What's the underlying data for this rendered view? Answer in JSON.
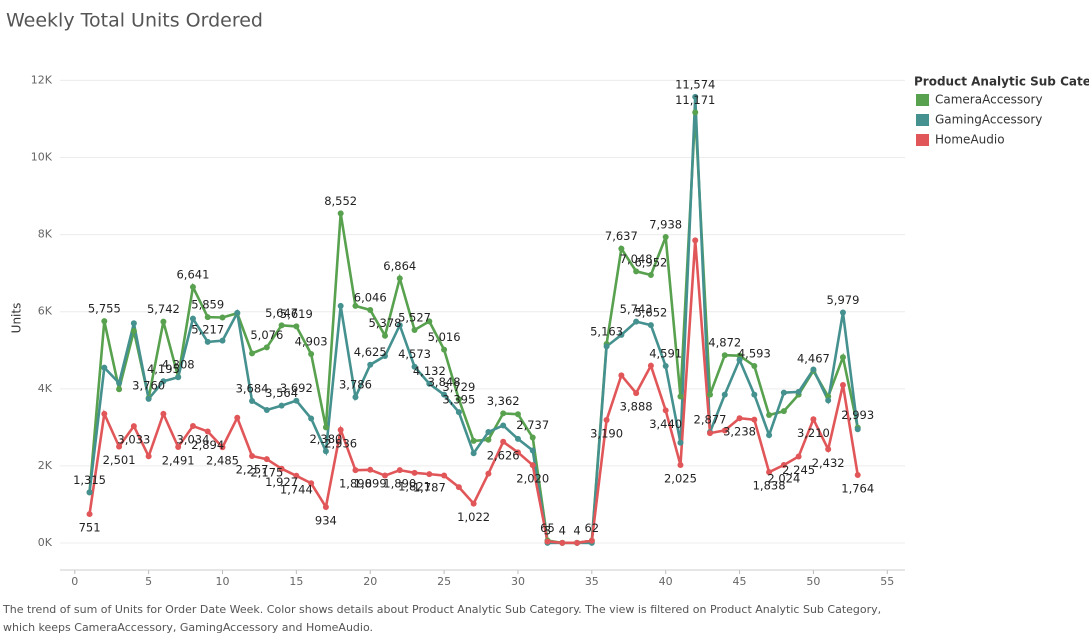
{
  "chart_data": {
    "type": "line",
    "title": "Weekly Total Units Ordered",
    "y_label": "Units",
    "legend_title": "Product Analytic Sub Category",
    "legend_position": "right",
    "grid": true,
    "caption": [
      "The trend of sum of Units for Order Date Week.  Color shows details about Product Analytic Sub Category. The view is filtered on Product Analytic Sub Category,",
      "which keeps CameraAccessory, GamingAccessory and HomeAudio."
    ],
    "x": [
      1,
      2,
      3,
      4,
      5,
      6,
      7,
      8,
      9,
      10,
      11,
      12,
      13,
      14,
      15,
      16,
      17,
      18,
      19,
      20,
      21,
      22,
      23,
      24,
      25,
      26,
      27,
      28,
      29,
      30,
      31,
      32,
      33,
      34,
      35,
      36,
      37,
      38,
      39,
      40,
      41,
      42,
      43,
      44,
      45,
      46,
      47,
      48,
      49,
      50,
      51,
      52,
      53
    ],
    "xlim": [
      -1,
      56.2
    ],
    "xticks": [
      0,
      5,
      10,
      15,
      20,
      25,
      30,
      35,
      40,
      45,
      50,
      55
    ],
    "ylim": [
      -700,
      12400
    ],
    "yticks": [
      {
        "value": 0,
        "label": "0K"
      },
      {
        "value": 2000,
        "label": "2K"
      },
      {
        "value": 4000,
        "label": "4K"
      },
      {
        "value": 6000,
        "label": "6K"
      },
      {
        "value": 8000,
        "label": "8K"
      },
      {
        "value": 10000,
        "label": "10K"
      },
      {
        "value": 12000,
        "label": "12K"
      }
    ],
    "series": [
      {
        "name": "CameraAccessory",
        "color": "#58a14e",
        "values": [
          1315,
          5755,
          3990,
          5500,
          3760,
          5742,
          4308,
          6641,
          5859,
          5850,
          5960,
          4920,
          5076,
          5647,
          5619,
          4903,
          3000,
          8552,
          6150,
          6046,
          5378,
          6864,
          5527,
          5750,
          5016,
          3729,
          2650,
          2680,
          3362,
          3340,
          2737,
          65,
          4,
          4,
          62,
          5163,
          7637,
          7048,
          6952,
          7938,
          3800,
          11171,
          3850,
          4872,
          4860,
          4593,
          3320,
          3420,
          3850,
          4467,
          3800,
          4820,
          2993
        ],
        "value_labels": [
          "1,315",
          "5,755",
          null,
          null,
          "3,760",
          "5,742",
          "4,308",
          "6,641",
          "5,859",
          null,
          null,
          null,
          "5,076",
          "5,647",
          "5,619",
          "4,903",
          null,
          "8,552",
          null,
          "6,046",
          "5,378",
          "6,864",
          "5,527",
          null,
          "5,016",
          "3,729",
          null,
          null,
          "3,362",
          null,
          "2,737",
          "65",
          "4",
          "4",
          "62",
          "5,163",
          "7,637",
          "7,048",
          "6,952",
          "7,938",
          null,
          "11,171",
          null,
          "4,872",
          null,
          "4,593",
          null,
          null,
          null,
          "4,467",
          null,
          null,
          "2,993"
        ]
      },
      {
        "name": "GamingAccessory",
        "color": "#45918f",
        "values": [
          1315,
          4550,
          4150,
          5700,
          3740,
          4195,
          4300,
          5820,
          5217,
          5250,
          5970,
          3684,
          3450,
          3564,
          3692,
          3230,
          2380,
          6150,
          3786,
          4625,
          4850,
          5650,
          4573,
          4132,
          3848,
          3395,
          2330,
          2880,
          3050,
          2700,
          2400,
          3,
          4,
          4,
          3,
          5100,
          5400,
          5743,
          5652,
          4591,
          2600,
          11574,
          2877,
          3850,
          4750,
          3850,
          2800,
          3900,
          3920,
          4500,
          3700,
          5979,
          2950
        ],
        "value_labels": [
          null,
          null,
          null,
          null,
          null,
          "4,195",
          null,
          null,
          "5,217",
          null,
          null,
          "3,684",
          null,
          "3,564",
          "3,692",
          null,
          "2,380",
          null,
          "3,786",
          "4,625",
          null,
          null,
          "4,573",
          "4,132",
          "3,848",
          "3,395",
          null,
          null,
          null,
          null,
          null,
          "3",
          null,
          null,
          null,
          null,
          null,
          "5,743",
          "5,652",
          "4,591",
          null,
          "11,574",
          "2,877",
          null,
          null,
          null,
          null,
          null,
          null,
          null,
          null,
          "5,979",
          null
        ]
      },
      {
        "name": "HomeAudio",
        "color": "#e15759",
        "values": [
          751,
          3350,
          2501,
          3033,
          2250,
          3350,
          2491,
          3034,
          2894,
          2485,
          3250,
          2257,
          2175,
          1927,
          1744,
          1550,
          934,
          2936,
          1890,
          1899,
          1750,
          1890,
          1821,
          1787,
          1750,
          1450,
          1022,
          1800,
          2626,
          2350,
          2020,
          40,
          5,
          5,
          60,
          3190,
          4350,
          3888,
          4600,
          3440,
          2025,
          7850,
          2850,
          2920,
          3238,
          3200,
          1838,
          2024,
          2245,
          3210,
          2432,
          4100,
          1764
        ],
        "value_labels": [
          "751",
          null,
          "2,501",
          "3,033",
          null,
          null,
          "2,491",
          "3,034",
          "2,894",
          "2,485",
          null,
          "2,257",
          "2,175",
          "1,927",
          "1,744",
          null,
          "934",
          "2,936",
          "1,890",
          "1,899",
          null,
          "1,890",
          "1,821",
          "1,787",
          null,
          null,
          "1,022",
          null,
          "2,626",
          null,
          "2,020",
          null,
          null,
          null,
          null,
          "3,190",
          null,
          "3,888",
          null,
          "3,440",
          "2,025",
          null,
          null,
          null,
          "3,238",
          null,
          "1,838",
          "2,024",
          "2,245",
          "3,210",
          "2,432",
          null,
          "1,764"
        ]
      }
    ]
  }
}
